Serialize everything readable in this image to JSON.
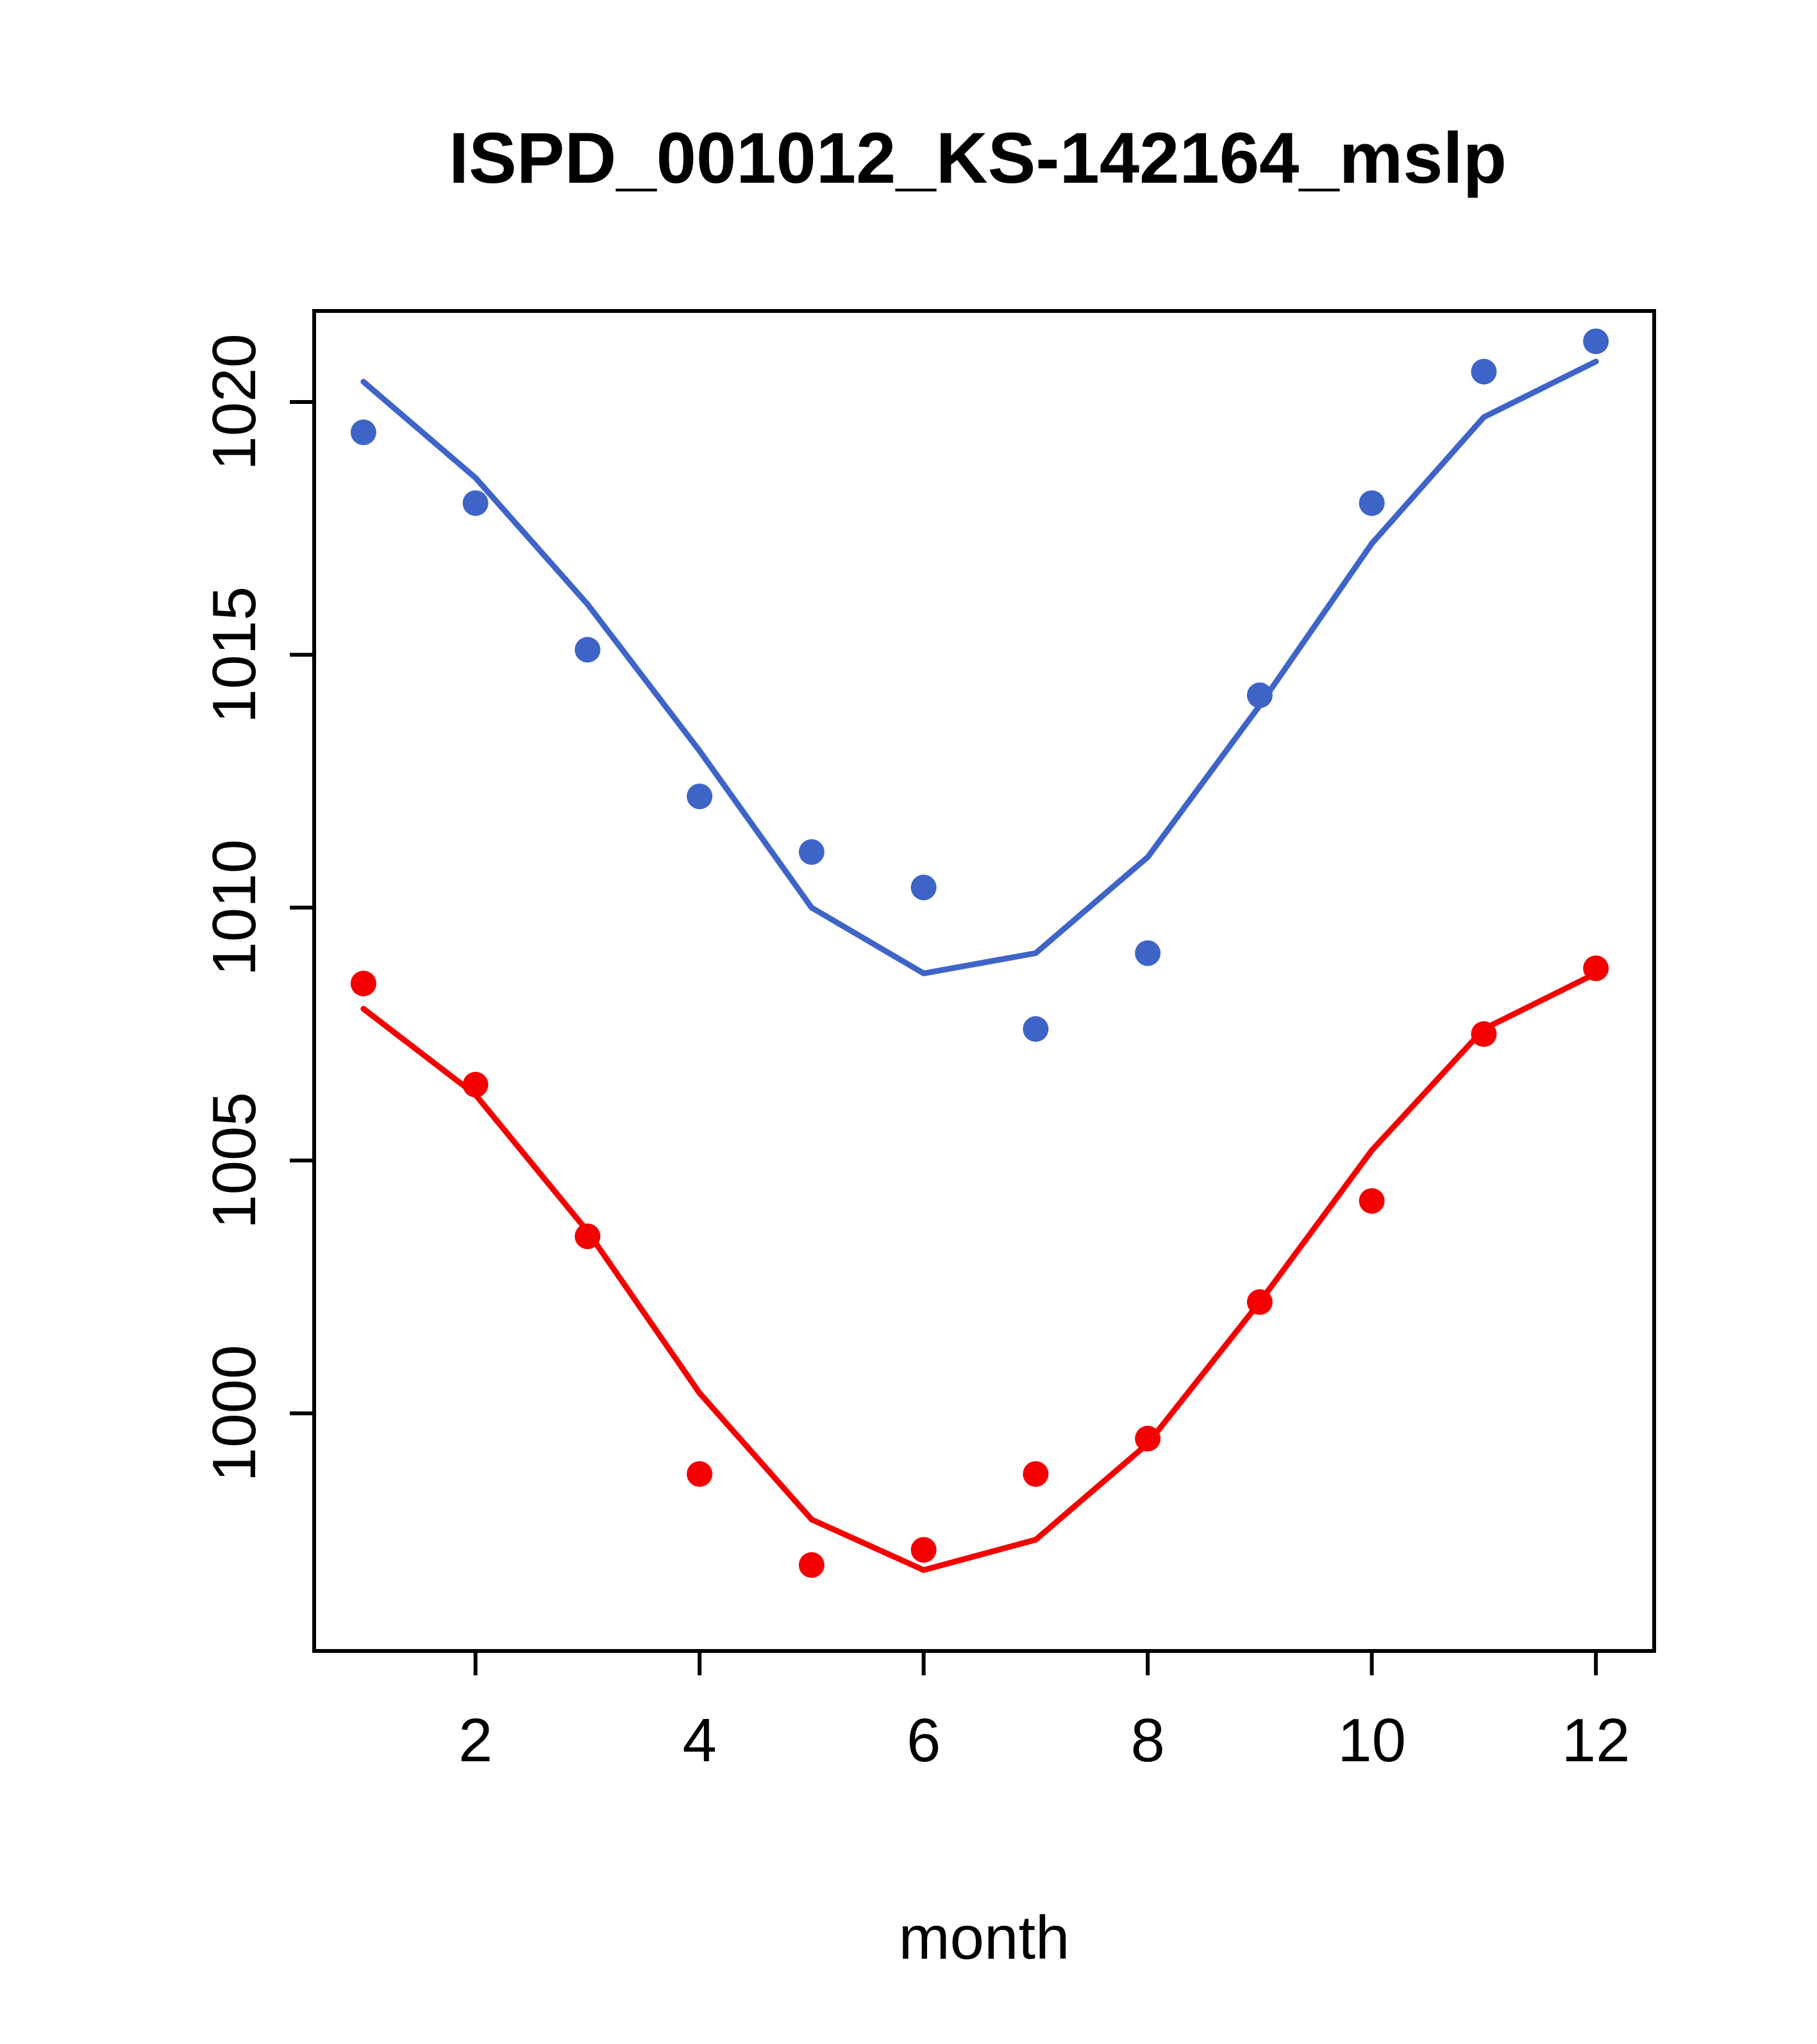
{
  "title": "ISPD_001012_KS-142164_mslp",
  "chart_data": {
    "type": "scatter",
    "title": "ISPD_001012_KS-142164_mslp",
    "xlabel": "month",
    "ylabel": "",
    "x": [
      1,
      2,
      3,
      4,
      5,
      6,
      7,
      8,
      9,
      10,
      11,
      12
    ],
    "xticks": [
      2,
      4,
      6,
      8,
      10,
      12
    ],
    "yticks": [
      1000,
      1005,
      1010,
      1015,
      1020
    ],
    "xlim": [
      0.56,
      12.52
    ],
    "ylim": [
      995.3,
      1021.8
    ],
    "grid": false,
    "legend": "none",
    "colors": {
      "blue": "#3E64C8",
      "red": "#F40000",
      "axis": "#000000"
    },
    "series": [
      {
        "name": "blue-line-fit",
        "type": "line",
        "color": "#3E64C8",
        "values": [
          1020.4,
          1018.5,
          1016.0,
          1013.1,
          1010.0,
          1008.7,
          1009.1,
          1011.0,
          1014.0,
          1017.2,
          1019.7,
          1020.8
        ]
      },
      {
        "name": "red-line-fit",
        "type": "line",
        "color": "#F40000",
        "values": [
          1008.0,
          1006.3,
          1003.6,
          1000.4,
          997.9,
          996.9,
          997.5,
          999.4,
          1002.2,
          1005.2,
          1007.6,
          1008.7
        ]
      },
      {
        "name": "blue-points-monthly",
        "type": "points",
        "color": "#3E64C8",
        "values": [
          1019.4,
          1018.0,
          1015.1,
          1012.2,
          1011.1,
          1010.4,
          1007.6,
          1009.1,
          1014.2,
          1018.0,
          1020.6,
          1021.2
        ]
      },
      {
        "name": "red-points-monthly",
        "type": "points",
        "color": "#F40000",
        "values": [
          1008.5,
          1006.5,
          1003.5,
          998.8,
          997.0,
          997.3,
          998.8,
          999.5,
          1002.2,
          1004.2,
          1007.5,
          1008.8
        ]
      }
    ]
  }
}
